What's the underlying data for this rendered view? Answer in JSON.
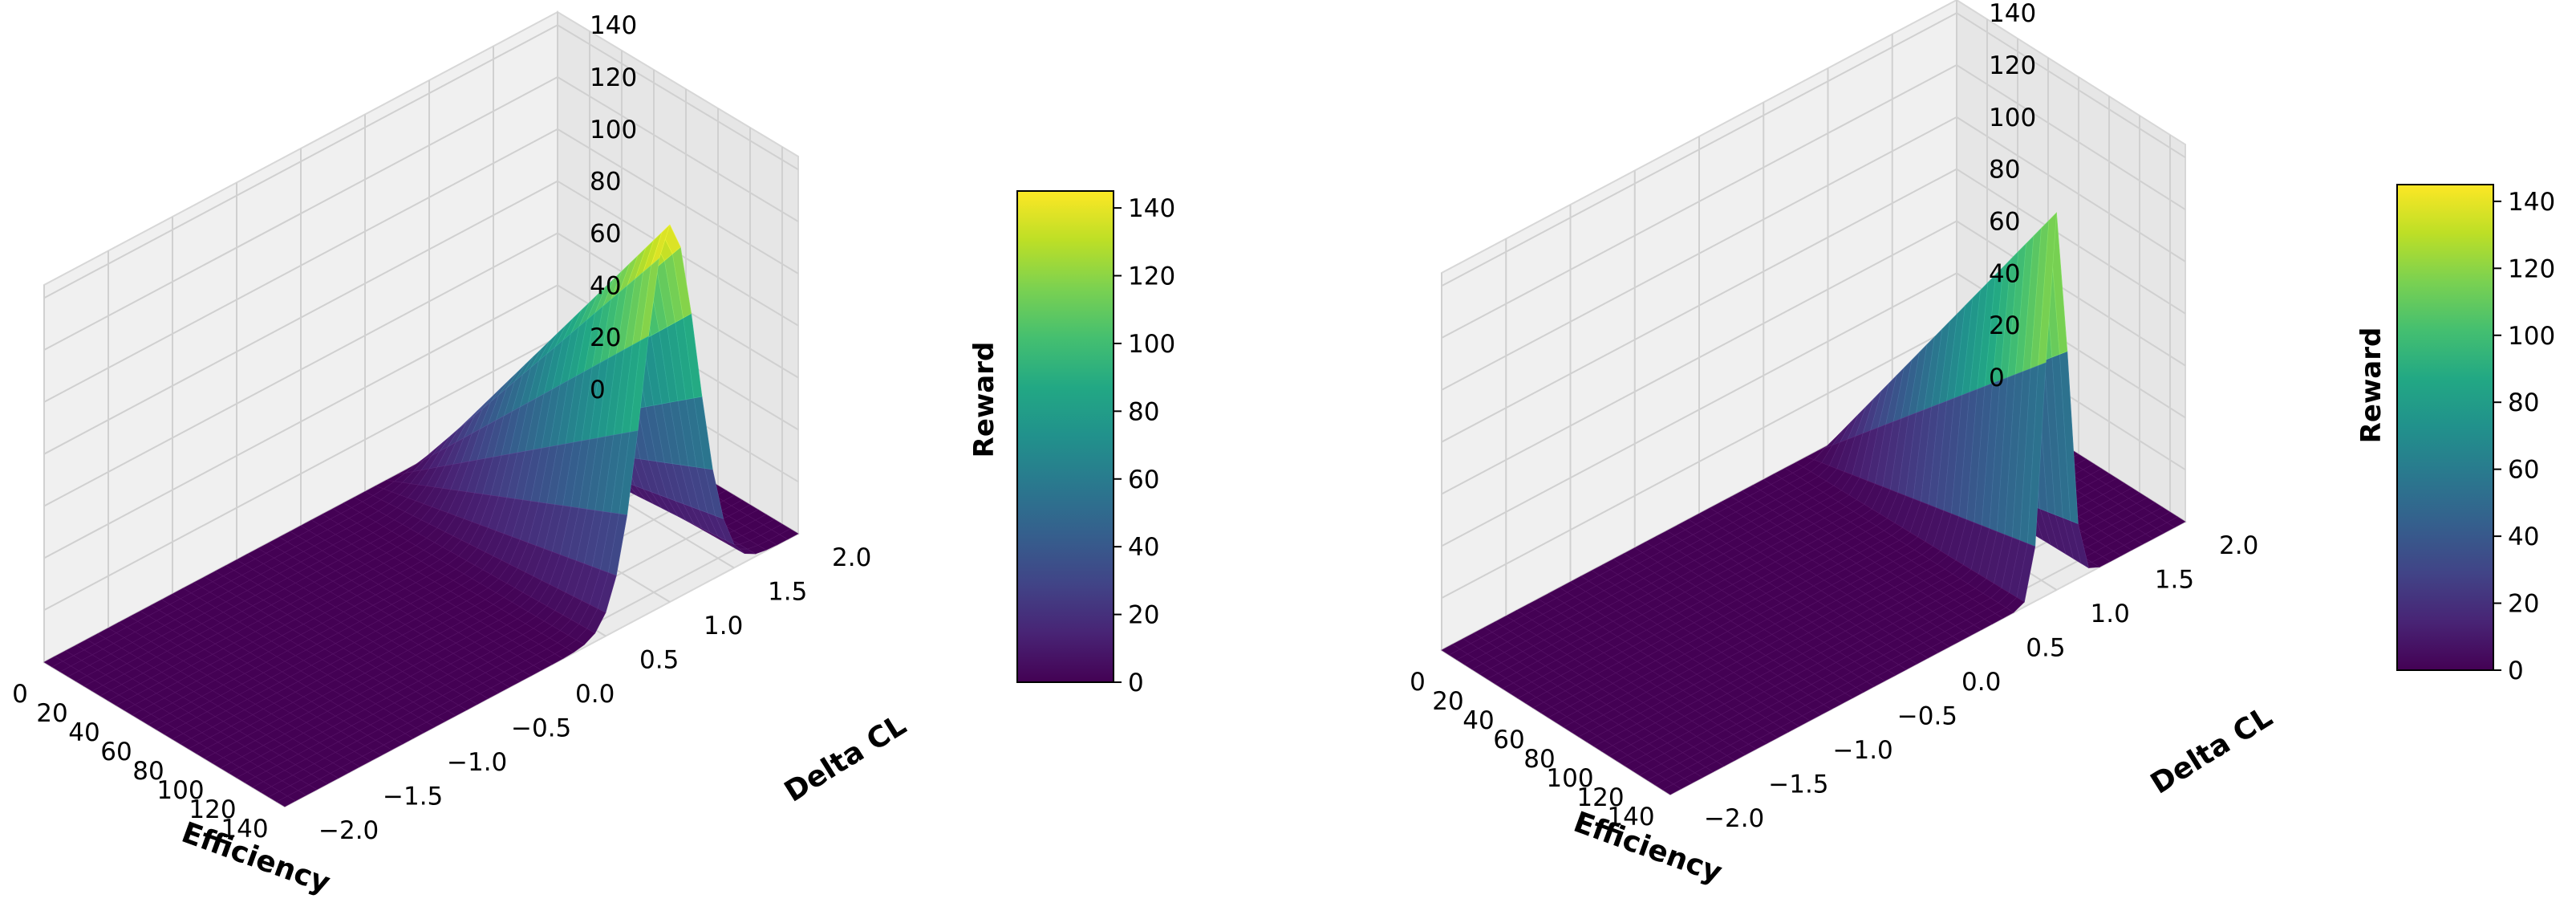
{
  "chart_data": [
    {
      "type": "surface3d",
      "xlabel": "Efficiency",
      "ylabel": "Delta CL",
      "zlabel": "Reward",
      "x_ticks": [
        "0",
        "20",
        "40",
        "60",
        "80",
        "100",
        "120",
        "140"
      ],
      "y_ticks": [
        "−2.0",
        "−1.5",
        "−1.0",
        "−0.5",
        "0.0",
        "0.5",
        "1.0",
        "1.5",
        "2.0"
      ],
      "z_ticks": [
        "0",
        "20",
        "40",
        "60",
        "80",
        "100",
        "120",
        "140"
      ],
      "colorbar_ticks": [
        "0",
        "20",
        "40",
        "60",
        "80",
        "100",
        "120",
        "140"
      ],
      "colormap": "viridis",
      "xlim": [
        0,
        150
      ],
      "ylim": [
        -2,
        2
      ],
      "zlim": [
        0,
        145
      ],
      "peak_delta_cl": 1.0,
      "peak_width": 0.3,
      "peak_max_reward": 145,
      "colorbar_range": [
        0,
        145
      ]
    },
    {
      "type": "surface3d",
      "xlabel": "Efficiency",
      "ylabel": "Delta CL",
      "zlabel": "Reward",
      "x_ticks": [
        "0",
        "20",
        "40",
        "60",
        "80",
        "100",
        "120",
        "140"
      ],
      "y_ticks": [
        "−2.0",
        "−1.5",
        "−1.0",
        "−0.5",
        "0.0",
        "0.5",
        "1.0",
        "1.5",
        "2.0"
      ],
      "z_ticks": [
        "0",
        "20",
        "40",
        "60",
        "80",
        "100",
        "120",
        "140"
      ],
      "colorbar_ticks": [
        "0",
        "20",
        "40",
        "60",
        "80",
        "100",
        "120",
        "140"
      ],
      "colormap": "viridis",
      "xlim": [
        0,
        150
      ],
      "ylim": [
        -2,
        2
      ],
      "zlim": [
        0,
        145
      ],
      "peak_delta_cl": 1.0,
      "peak_width": 0.12,
      "peak_max_reward": 145,
      "colorbar_range": [
        0,
        145
      ]
    }
  ]
}
